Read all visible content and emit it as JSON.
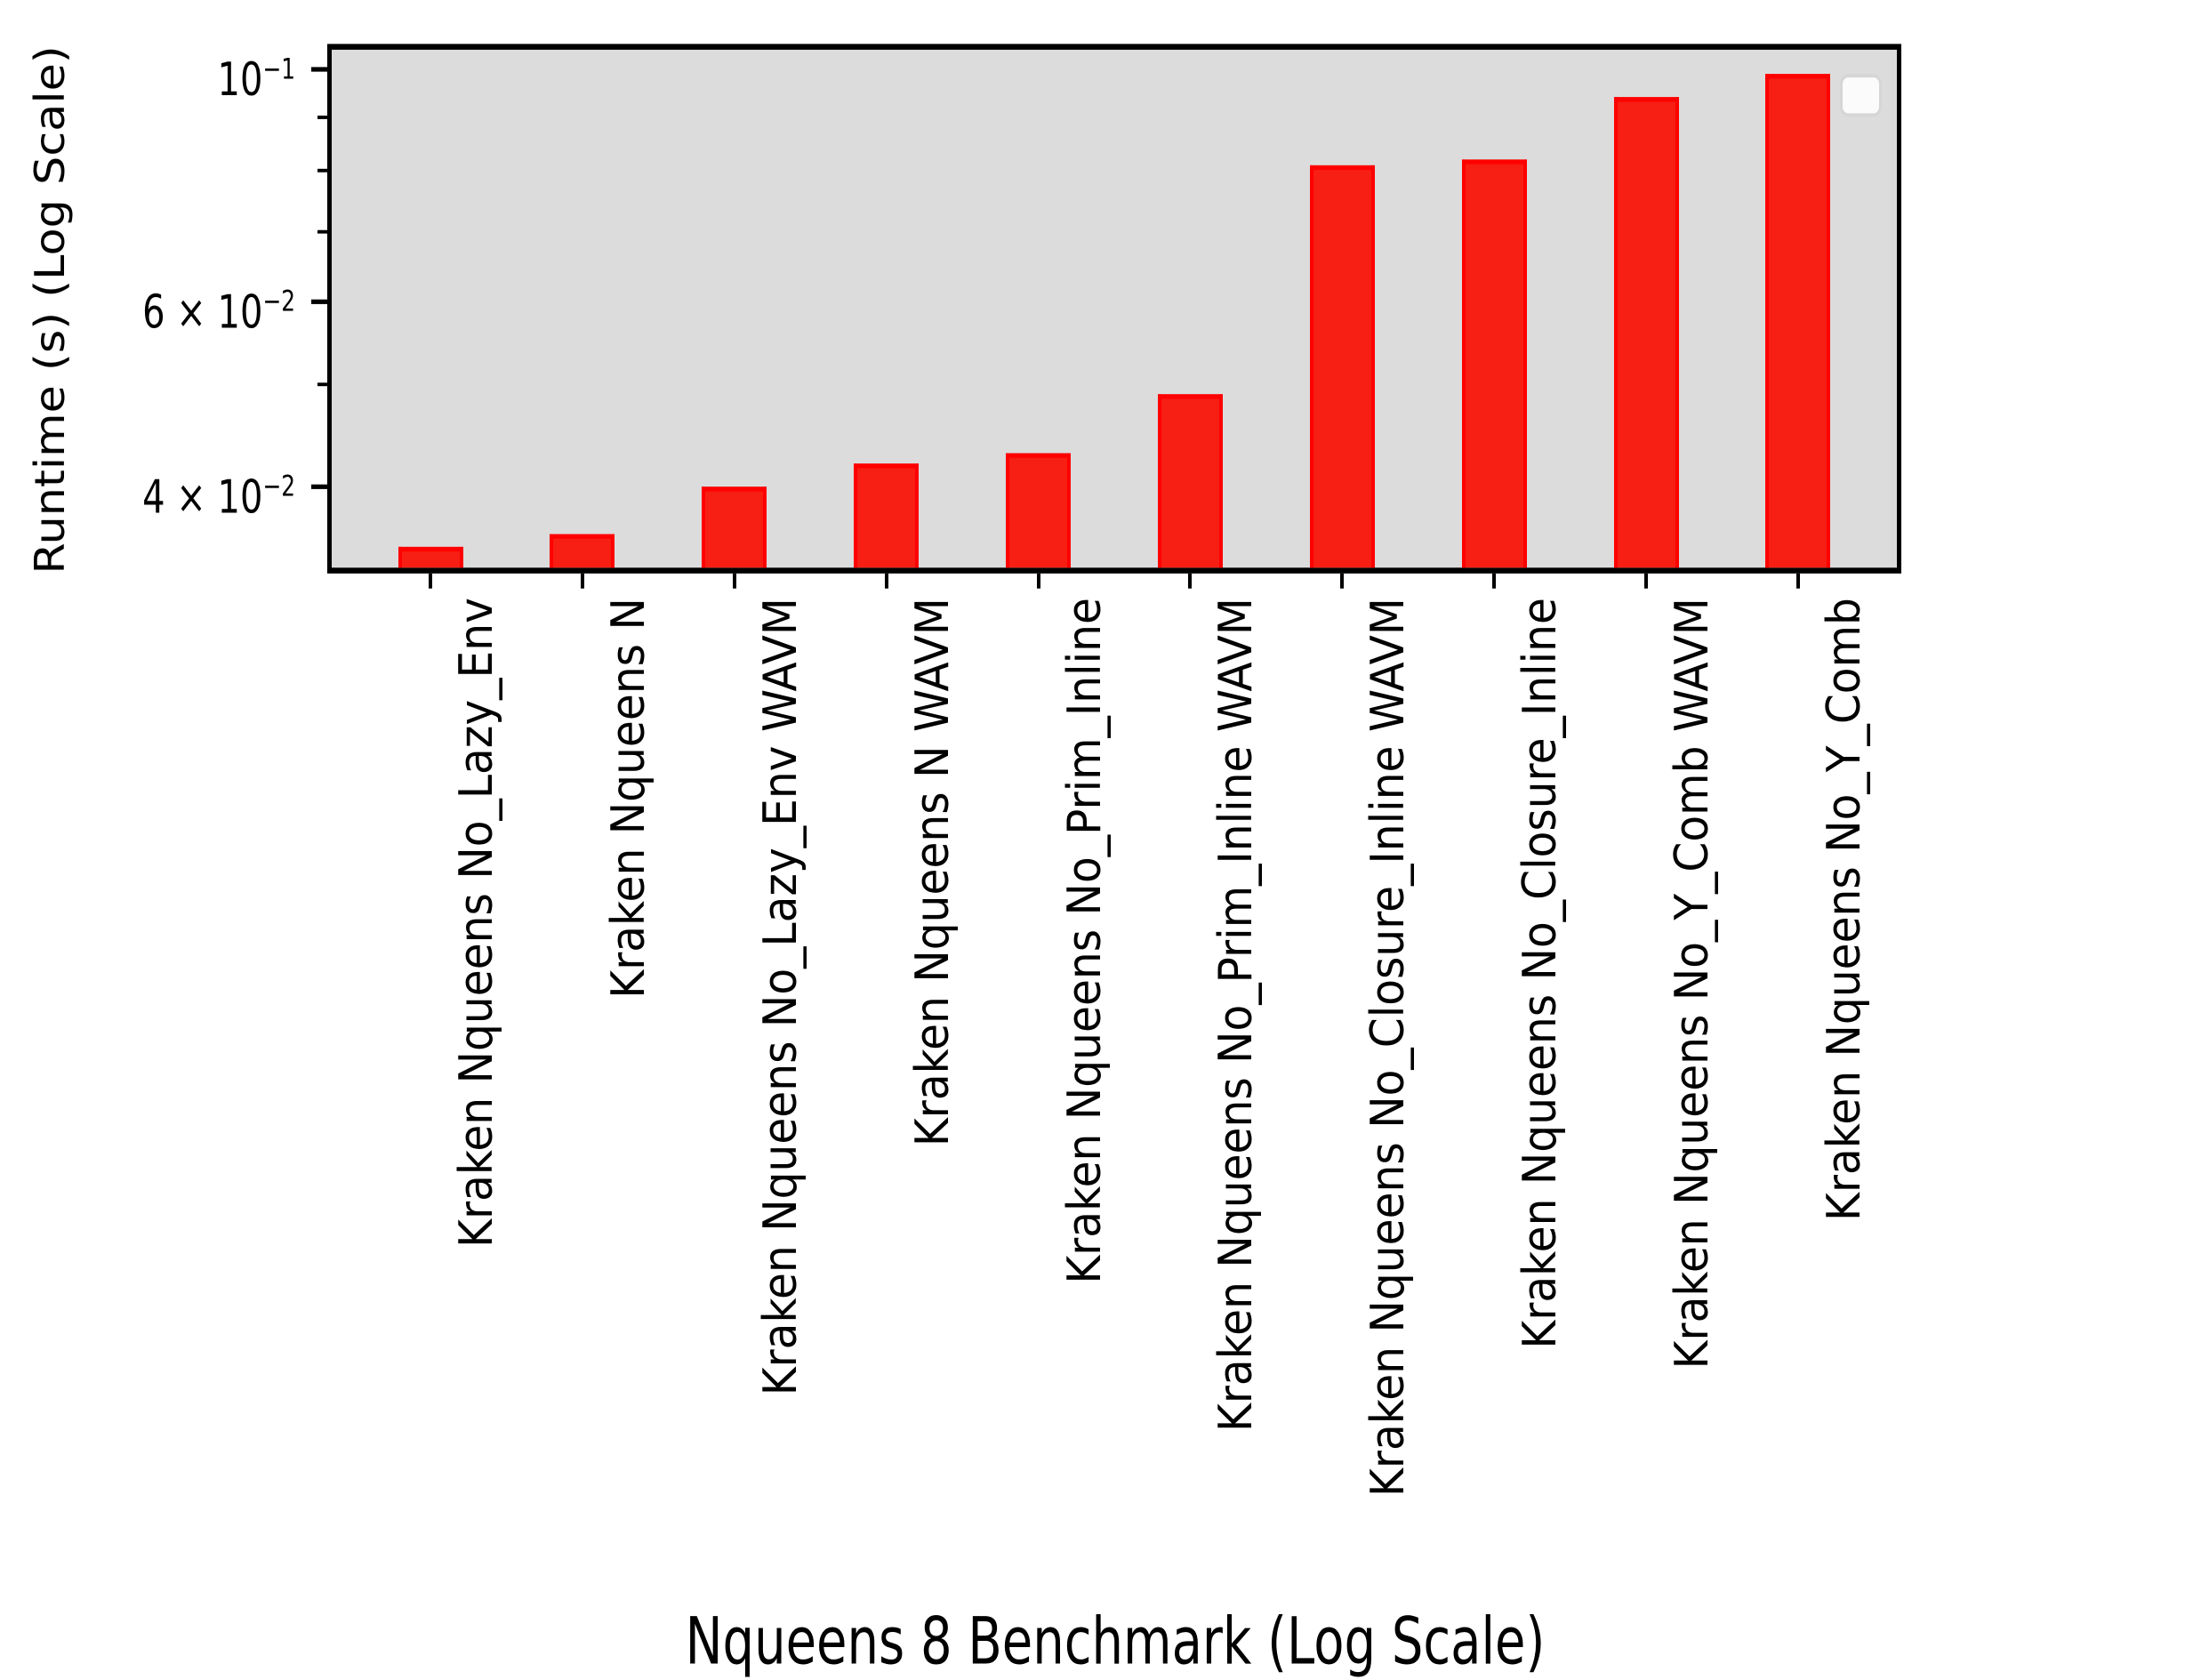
{
  "figure": {
    "background_color": "#ffffff",
    "plot_background_color": "#dcdcdc",
    "spine_color": "#000000"
  },
  "chart_data": {
    "type": "bar",
    "title": "Nqueens 8 Benchmark (Log Scale)",
    "xlabel": "Nqueens 8 Benchmark (Log Scale)",
    "ylabel": "Runtime (s) (Log Scale)",
    "yscale": "log",
    "ylim": [
      0.033,
      0.102
    ],
    "grid": false,
    "legend_position": "upper right",
    "legend_entries": [],
    "categories": [
      "Kraken Nqueens No_Lazy_Env",
      "Kraken Nqueens N",
      "Kraken Nqueens No_Lazy_Env WAVM",
      "Kraken Nqueens N WAVM",
      "Kraken Nqueens No_Prim_Inline",
      "Kraken Nqueens No_Prim_Inline WAVM",
      "Kraken Nqueens No_Closure_Inline WAVM",
      "Kraken Nqueens No_Closure_Inline",
      "Kraken Nqueens No_Y_Comb WAVM",
      "Kraken Nqueens No_Y_Comb"
    ],
    "values": [
      0.035,
      0.036,
      0.04,
      0.042,
      0.043,
      0.049,
      0.081,
      0.082,
      0.094,
      0.099
    ],
    "bar_fill_color": "#f71e13",
    "bar_edge_color": "#ff0000",
    "yticks_major": [
      {
        "base": "10",
        "sup": "−1",
        "value": 0.1
      },
      {
        "base": "6 × 10",
        "sup": "−2",
        "value": 0.06
      },
      {
        "base": "4 × 10",
        "sup": "−2",
        "value": 0.04
      }
    ],
    "yticks_minor": [
      0.09,
      0.08,
      0.07,
      0.05
    ]
  }
}
